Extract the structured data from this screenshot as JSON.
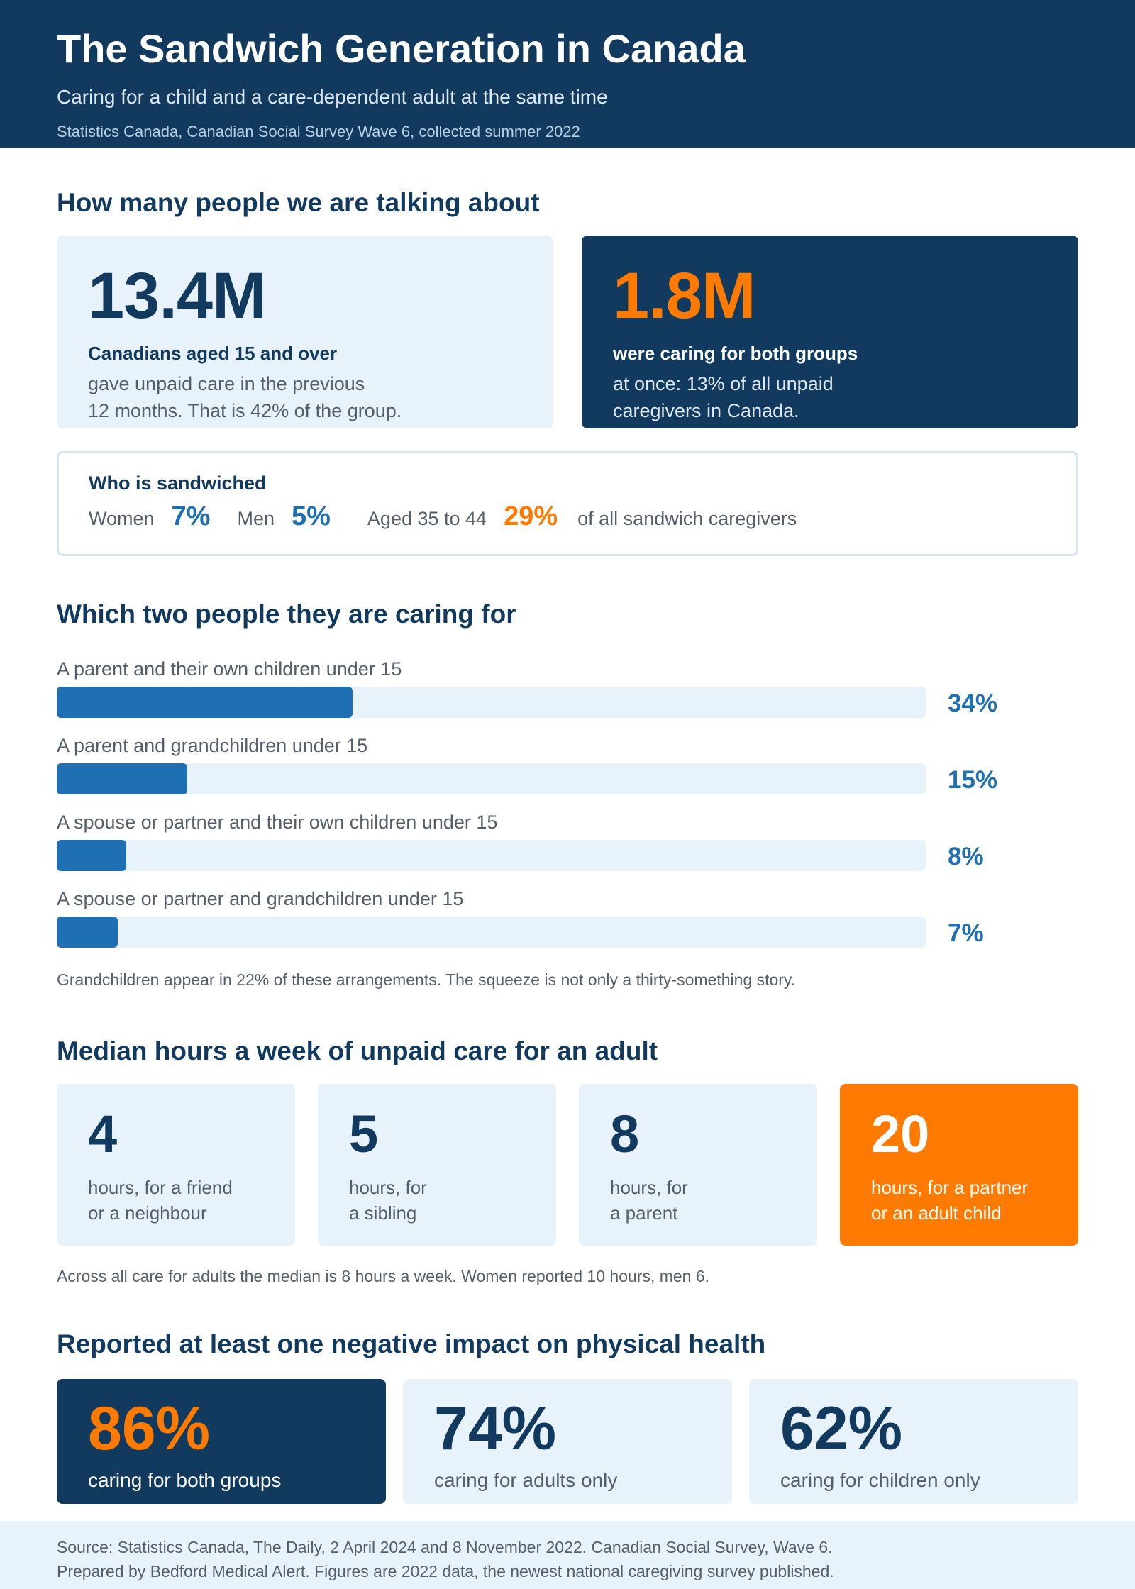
{
  "header": {
    "title": "The Sandwich Generation in Canada",
    "subtitle": "Caring for a child and a care-dependent adult at the same time",
    "meta": "Statistics Canada, Canadian Social Survey Wave 6, collected summer 2022"
  },
  "people": {
    "title": "How many people we are talking about",
    "card1": {
      "big": "13.4M",
      "lead": "Canadians aged 15 and over",
      "line1": "gave unpaid care in the previous",
      "line2": "12 months. That is 42% of the group."
    },
    "card2": {
      "big": "1.8M",
      "lead": "were caring for both groups",
      "line1": "at once: 13% of all unpaid",
      "line2": "caregivers in Canada."
    },
    "who": {
      "title": "Who is sandwiched",
      "women_label": "Women",
      "women_value": "7%",
      "men_label": "Men",
      "men_value": "5%",
      "age_label": "Aged 35 to 44",
      "age_value": "29%",
      "age_trail": "of all sandwich caregivers"
    }
  },
  "caring_for": {
    "title": "Which two people they are caring for",
    "items": [
      {
        "label": "A parent and their own children under 15",
        "value": 34,
        "display": "34%"
      },
      {
        "label": "A parent and grandchildren under 15",
        "value": 15,
        "display": "15%"
      },
      {
        "label": "A spouse or partner and their own children under 15",
        "value": 8,
        "display": "8%"
      },
      {
        "label": "A spouse or partner and grandchildren under 15",
        "value": 7,
        "display": "7%"
      }
    ],
    "note": "Grandchildren appear in 22% of these arrangements. The squeeze is not only a thirty-something story."
  },
  "hours": {
    "title": "Median hours a week of unpaid care for an adult",
    "cards": [
      {
        "num": "4",
        "line1": "hours, for a friend",
        "line2": "or a neighbour"
      },
      {
        "num": "5",
        "line1": "hours, for",
        "line2": "a sibling"
      },
      {
        "num": "8",
        "line1": "hours, for",
        "line2": "a parent"
      },
      {
        "num": "20",
        "line1": "hours, for a partner",
        "line2": "or an adult child"
      }
    ],
    "note": "Across all care for adults the median is 8 hours a week. Women reported 10 hours, men 6."
  },
  "impact": {
    "title": "Reported at least one negative impact on physical health",
    "cards": [
      {
        "num": "86%",
        "txt": "caring for both groups"
      },
      {
        "num": "74%",
        "txt": "caring for adults only"
      },
      {
        "num": "62%",
        "txt": "caring for children only"
      }
    ]
  },
  "footer": {
    "line1": "Source: Statistics Canada, The Daily, 2 April 2024 and 8 November 2022. Canadian Social Survey, Wave 6.",
    "line2": "Prepared by Bedford Medical Alert. Figures are 2022 data, the newest national caregiving survey published."
  },
  "colors": {
    "navy": "#113a5e",
    "blue": "#1f6fb3",
    "orange": "#ff7a00",
    "light": "#e8f2fb"
  }
}
